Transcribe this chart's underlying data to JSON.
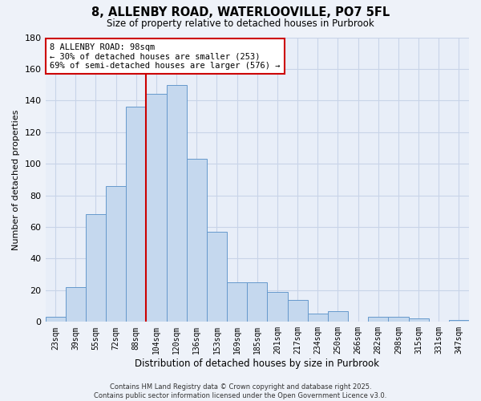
{
  "title": "8, ALLENBY ROAD, WATERLOOVILLE, PO7 5FL",
  "subtitle": "Size of property relative to detached houses in Purbrook",
  "xlabel": "Distribution of detached houses by size in Purbrook",
  "ylabel": "Number of detached properties",
  "bar_labels": [
    "23sqm",
    "39sqm",
    "55sqm",
    "72sqm",
    "88sqm",
    "104sqm",
    "120sqm",
    "136sqm",
    "153sqm",
    "169sqm",
    "185sqm",
    "201sqm",
    "217sqm",
    "234sqm",
    "250sqm",
    "266sqm",
    "282sqm",
    "298sqm",
    "315sqm",
    "331sqm",
    "347sqm"
  ],
  "bar_values": [
    3,
    22,
    68,
    86,
    136,
    144,
    150,
    103,
    57,
    25,
    25,
    19,
    14,
    5,
    7,
    0,
    3,
    3,
    2,
    0,
    1
  ],
  "bar_color": "#c5d8ee",
  "bar_edge_color": "#6699cc",
  "vline_x_idx": 4,
  "vline_color": "#cc0000",
  "ylim": [
    0,
    180
  ],
  "yticks": [
    0,
    20,
    40,
    60,
    80,
    100,
    120,
    140,
    160,
    180
  ],
  "annotation_line1": "8 ALLENBY ROAD: 98sqm",
  "annotation_line2": "← 30% of detached houses are smaller (253)",
  "annotation_line3": "69% of semi-detached houses are larger (576) →",
  "annotation_box_color": "#ffffff",
  "annotation_box_edge": "#cc0000",
  "footer1": "Contains HM Land Registry data © Crown copyright and database right 2025.",
  "footer2": "Contains public sector information licensed under the Open Government Licence v3.0.",
  "bg_color": "#eef2f9",
  "plot_bg_color": "#e8eef8",
  "grid_color": "#c8d4e8"
}
